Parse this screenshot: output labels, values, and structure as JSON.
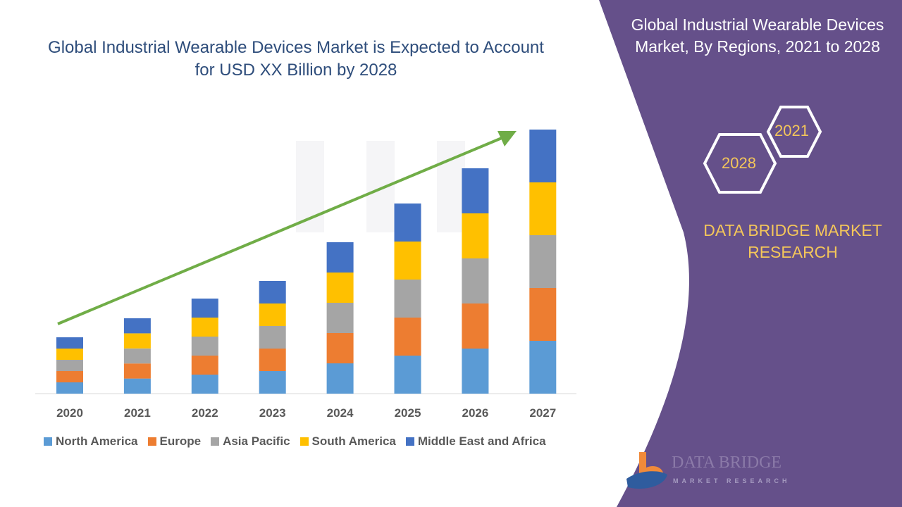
{
  "title": "Global Industrial Wearable Devices Market is Expected to Account for USD XX Billion by 2028",
  "side_panel": {
    "title": "Global Industrial Wearable Devices Market, By Regions, 2021 to 2028",
    "hex_labels": [
      "2021",
      "2028"
    ],
    "brand": "DATA BRIDGE MARKET RESEARCH",
    "logo_text": [
      "DATA BRIDGE",
      "MARKET RESEARCH"
    ],
    "panel_color": "#65508a",
    "accent_color": "#f4c65a"
  },
  "chart_data": {
    "type": "bar",
    "stacked": true,
    "categories": [
      "2020",
      "2021",
      "2022",
      "2023",
      "2024",
      "2025",
      "2026",
      "2027"
    ],
    "series": [
      {
        "name": "North America",
        "color": "#5b9bd5",
        "values": [
          16,
          21.4,
          27,
          32,
          43,
          54,
          64,
          75
        ]
      },
      {
        "name": "Europe",
        "color": "#ed7d31",
        "values": [
          16,
          21.4,
          27,
          32,
          43,
          54,
          64,
          75
        ]
      },
      {
        "name": "Asia Pacific",
        "color": "#a5a5a5",
        "values": [
          16,
          21.4,
          27,
          32,
          43,
          54,
          64,
          75
        ]
      },
      {
        "name": "South America",
        "color": "#ffc000",
        "values": [
          16,
          21.4,
          27,
          32,
          43,
          54,
          64,
          75
        ]
      },
      {
        "name": "Middle East and Africa",
        "color": "#4472c4",
        "values": [
          16,
          21.4,
          27,
          32,
          43,
          54,
          64,
          75
        ]
      }
    ],
    "y_axis_shown": false,
    "grid": false,
    "legend": "bottom",
    "trend_arrow_color": "#70ad47"
  }
}
